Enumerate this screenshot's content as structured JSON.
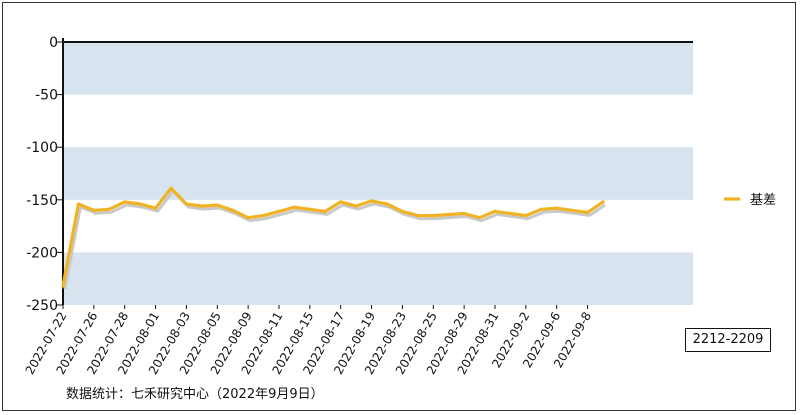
{
  "chart_data": {
    "type": "line",
    "ylim": [
      -250,
      0
    ],
    "yticks": [
      0,
      -50,
      -100,
      -150,
      -200,
      -250
    ],
    "ytick_labels": [
      "0",
      "-50",
      "-100",
      "-150",
      "-200",
      "-250"
    ],
    "grid": "alternating horizontal bands",
    "legend_placement": "right",
    "x": [
      "2022-07-22",
      "2022-07-25",
      "2022-07-26",
      "2022-07-27",
      "2022-07-28",
      "2022-07-29",
      "2022-08-01",
      "2022-08-02",
      "2022-08-03",
      "2022-08-04",
      "2022-08-05",
      "2022-08-08",
      "2022-08-09",
      "2022-08-10",
      "2022-08-11",
      "2022-08-12",
      "2022-08-15",
      "2022-08-16",
      "2022-08-17",
      "2022-08-18",
      "2022-08-19",
      "2022-08-22",
      "2022-08-23",
      "2022-08-24",
      "2022-08-25",
      "2022-08-26",
      "2022-08-29",
      "2022-08-30",
      "2022-08-31",
      "2022-09-01",
      "2022-09-2",
      "2022-09-5",
      "2022-09-6",
      "2022-09-7",
      "2022-09-8",
      "2022-09-9"
    ],
    "x_tick_labels": [
      "2022-07-22",
      "2022-07-26",
      "2022-07-28",
      "2022-08-01",
      "2022-08-03",
      "2022-08-05",
      "2022-08-09",
      "2022-08-11",
      "2022-08-15",
      "2022-08-17",
      "2022-08-19",
      "2022-08-23",
      "2022-08-25",
      "2022-08-29",
      "2022-08-31",
      "2022-09-2",
      "2022-09-6",
      "2022-09-8"
    ],
    "series": [
      {
        "name": "基差",
        "color": "#f0b323",
        "values": [
          -232,
          -154,
          -160,
          -159,
          -152,
          -154,
          -158,
          -139,
          -154,
          -156,
          -155,
          -160,
          -167,
          -165,
          -161,
          -157,
          -159,
          -161,
          -152,
          -156,
          -151,
          -154,
          -161,
          -165,
          -165,
          -164,
          -163,
          -167,
          -161,
          -163,
          -165,
          -159,
          -158,
          -160,
          -162,
          -152
        ]
      }
    ]
  },
  "contract_label": "2212-2209",
  "source_note": "数据统计：七禾研究中心（2022年9月9日）"
}
